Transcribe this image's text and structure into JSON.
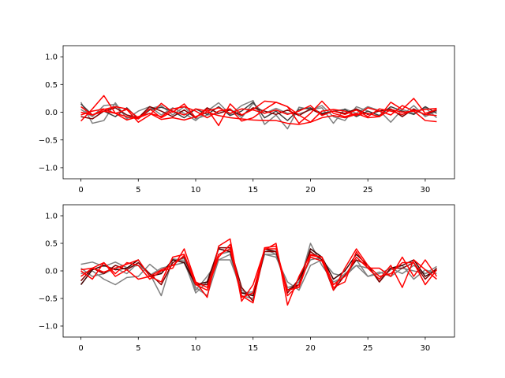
{
  "figure": {
    "background": "#ffffff"
  },
  "chart_data": [
    {
      "type": "line",
      "title": "",
      "xlabel": "",
      "ylabel": "",
      "xlim": [
        -1.55,
        32.55
      ],
      "ylim": [
        -1.2,
        1.2
      ],
      "xticks": [
        0,
        5,
        10,
        15,
        20,
        25,
        30
      ],
      "yticks": [
        -1.0,
        -0.5,
        0.0,
        0.5,
        1.0
      ],
      "xtick_labels": [
        "0",
        "5",
        "10",
        "15",
        "20",
        "25",
        "30"
      ],
      "ytick_labels": [
        "−1.0",
        "−0.5",
        "0.0",
        "0.5",
        "1.0"
      ],
      "grid": false,
      "legend": "none",
      "x": [
        0,
        1,
        2,
        3,
        4,
        5,
        6,
        7,
        8,
        9,
        10,
        11,
        12,
        13,
        14,
        15,
        16,
        17,
        18,
        19,
        20,
        21,
        22,
        23,
        24,
        25,
        26,
        27,
        28,
        29,
        30,
        31
      ],
      "series": [
        {
          "color": "#808080",
          "values": [
            0.18,
            -0.2,
            -0.15,
            0.17,
            -0.12,
            0.02,
            0.1,
            -0.05,
            0.08,
            -0.02,
            -0.15,
            0.02,
            0.17,
            -0.04,
            0.12,
            0.21,
            -0.22,
            -0.05,
            -0.3,
            0.09,
            0.05,
            0.08,
            -0.2,
            0.06,
            -0.02,
            0.1,
            0.03,
            -0.18,
            0.05,
            -0.02,
            0.08,
            -0.1
          ]
        },
        {
          "color": "#808080",
          "values": [
            0.05,
            -0.08,
            0.12,
            0.14,
            -0.1,
            -0.1,
            0.06,
            0.12,
            -0.05,
            0.1,
            -0.12,
            -0.05,
            -0.02,
            0.06,
            -0.1,
            0.16,
            -0.02,
            0.07,
            -0.02,
            -0.03,
            0.04,
            0.12,
            -0.08,
            -0.15,
            0.1,
            0.02,
            -0.06,
            0.04,
            -0.05,
            0.12,
            -0.08,
            0.02
          ]
        },
        {
          "color": "#404040",
          "values": [
            0.15,
            -0.05,
            0.02,
            -0.08,
            0.08,
            -0.12,
            0.04,
            0.09,
            0.02,
            -0.1,
            0.06,
            -0.04,
            0.1,
            -0.06,
            0.02,
            0.18,
            -0.1,
            0.02,
            -0.15,
            0.05,
            0.08,
            -0.02,
            0.02,
            0.05,
            -0.08,
            0.02,
            -0.06,
            0.1,
            0.02,
            -0.04,
            0.1,
            -0.02
          ]
        },
        {
          "color": "#800000",
          "values": [
            -0.08,
            -0.12,
            0.02,
            0.08,
            -0.05,
            -0.1,
            0.1,
            0.02,
            -0.08,
            0.04,
            -0.1,
            0.08,
            -0.02,
            0.04,
            -0.06,
            0.08,
            0.02,
            -0.04,
            0.04,
            -0.06,
            0.06,
            -0.04,
            0.02,
            -0.02,
            0.06,
            -0.04,
            0.02,
            0.06,
            -0.08,
            0.06,
            -0.05,
            0.04
          ]
        },
        {
          "color": "#ff0000",
          "values": [
            -0.16,
            0.06,
            0.3,
            -0.02,
            0.05,
            -0.18,
            -0.05,
            0.16,
            0.0,
            0.15,
            -0.1,
            0.06,
            -0.24,
            0.15,
            -0.05,
            0.05,
            0.2,
            0.18,
            0.1,
            -0.2,
            -0.02,
            0.2,
            -0.02,
            -0.08,
            -0.02,
            -0.1,
            -0.08,
            0.18,
            0.05,
            0.25,
            -0.02,
            0.05
          ]
        },
        {
          "color": "#ff0000",
          "values": [
            0.0,
            -0.05,
            0.05,
            0.1,
            0.06,
            -0.1,
            -0.02,
            -0.08,
            0.06,
            0.1,
            0.02,
            -0.1,
            0.02,
            0.06,
            -0.16,
            -0.1,
            0.05,
            0.18,
            0.1,
            -0.05,
            -0.18,
            0.02,
            0.05,
            0.02,
            -0.06,
            0.08,
            0.02,
            -0.05,
            0.12,
            0.02,
            0.05,
            0.07
          ]
        },
        {
          "color": "#ff0000",
          "values": [
            0.1,
            -0.05,
            0.02,
            -0.02,
            -0.14,
            -0.08,
            -0.02,
            -0.13,
            -0.1,
            -0.14,
            -0.08,
            0.0,
            -0.06,
            -0.1,
            -0.12,
            -0.14,
            -0.15,
            -0.15,
            -0.2,
            -0.22,
            -0.18,
            -0.1,
            -0.06,
            -0.1,
            -0.04,
            -0.02,
            -0.08,
            0.05,
            0.0,
            0.02,
            -0.15,
            -0.17
          ]
        },
        {
          "color": "#ff0000",
          "values": [
            -0.05,
            0.02,
            0.06,
            -0.02,
            -0.08,
            -0.12,
            0.06,
            -0.1,
            0.02,
            -0.05,
            0.06,
            0.02,
            0.08,
            -0.02,
            0.06,
            0.04,
            -0.02,
            0.04,
            -0.04,
            0.02,
            0.12,
            -0.06,
            0.02,
            -0.04,
            0.04,
            -0.08,
            0.06,
            0.02,
            -0.04,
            0.04,
            -0.04,
            -0.06
          ]
        }
      ]
    },
    {
      "type": "line",
      "title": "",
      "xlabel": "",
      "ylabel": "",
      "xlim": [
        -1.55,
        32.55
      ],
      "ylim": [
        -1.2,
        1.2
      ],
      "xticks": [
        0,
        5,
        10,
        15,
        20,
        25,
        30
      ],
      "yticks": [
        -1.0,
        -0.5,
        0.0,
        0.5,
        1.0
      ],
      "xtick_labels": [
        "0",
        "5",
        "10",
        "15",
        "20",
        "25",
        "30"
      ],
      "ytick_labels": [
        "−1.0",
        "−0.5",
        "0.0",
        "0.5",
        "1.0"
      ],
      "grid": false,
      "legend": "none",
      "x": [
        0,
        1,
        2,
        3,
        4,
        5,
        6,
        7,
        8,
        9,
        10,
        11,
        12,
        13,
        14,
        15,
        16,
        17,
        18,
        19,
        20,
        21,
        22,
        23,
        24,
        25,
        26,
        27,
        28,
        29,
        30,
        31
      ],
      "series": [
        {
          "color": "#808080",
          "values": [
            0.12,
            0.16,
            0.08,
            0.16,
            0.06,
            0.1,
            -0.05,
            -0.45,
            0.22,
            0.18,
            -0.4,
            -0.2,
            0.3,
            0.35,
            -0.4,
            -0.38,
            0.3,
            0.3,
            -0.3,
            -0.25,
            0.5,
            0.1,
            -0.2,
            -0.1,
            0.2,
            -0.1,
            -0.05,
            0.05,
            -0.05,
            0.1,
            -0.05,
            0.08
          ]
        },
        {
          "color": "#808080",
          "values": [
            -0.05,
            0.0,
            -0.15,
            -0.25,
            -0.12,
            -0.1,
            0.12,
            -0.05,
            0.2,
            0.22,
            -0.3,
            -0.45,
            0.2,
            0.3,
            -0.45,
            -0.5,
            0.4,
            0.3,
            -0.35,
            -0.2,
            0.2,
            0.25,
            -0.25,
            -0.05,
            0.1,
            0.05,
            -0.15,
            0.02,
            0.1,
            -0.15,
            0.02,
            -0.05
          ]
        },
        {
          "color": "#808080",
          "values": [
            0.05,
            -0.1,
            -0.05,
            0.05,
            -0.05,
            0.15,
            -0.08,
            0.05,
            0.1,
            0.15,
            -0.35,
            -0.1,
            0.2,
            0.2,
            -0.35,
            -0.45,
            0.3,
            0.25,
            -0.2,
            -0.35,
            0.1,
            0.2,
            -0.05,
            -0.1,
            0.1,
            -0.1,
            -0.02,
            -0.1,
            0.05,
            0.0,
            -0.05,
            0.02
          ]
        },
        {
          "color": "#400000",
          "values": [
            -0.25,
            0.02,
            0.1,
            0.02,
            0.05,
            0.2,
            -0.1,
            -0.05,
            0.2,
            0.15,
            -0.25,
            -0.2,
            0.4,
            0.35,
            -0.4,
            -0.45,
            0.4,
            0.35,
            -0.35,
            -0.25,
            0.4,
            0.25,
            -0.15,
            0.0,
            0.3,
            0.1,
            -0.2,
            0.05,
            0.1,
            0.2,
            -0.1,
            0.02
          ]
        },
        {
          "color": "#800000",
          "values": [
            -0.18,
            0.05,
            -0.05,
            0.1,
            0.02,
            0.15,
            -0.05,
            -0.25,
            0.15,
            0.25,
            -0.25,
            -0.25,
            0.42,
            0.42,
            -0.3,
            -0.55,
            0.35,
            0.35,
            -0.4,
            -0.15,
            0.35,
            0.2,
            -0.35,
            -0.08,
            0.2,
            0.1,
            -0.2,
            0.05,
            0.05,
            0.15,
            -0.15,
            0.05
          ]
        },
        {
          "color": "#ff0000",
          "values": [
            0.0,
            -0.15,
            0.15,
            -0.05,
            0.15,
            0.1,
            -0.15,
            0.0,
            0.05,
            0.4,
            -0.2,
            -0.48,
            0.45,
            0.58,
            -0.55,
            -0.25,
            0.38,
            0.5,
            -0.62,
            -0.1,
            0.3,
            0.25,
            -0.35,
            0.05,
            0.4,
            0.1,
            -0.1,
            -0.05,
            0.15,
            0.15,
            -0.25,
            0.02
          ]
        },
        {
          "color": "#ff0000",
          "values": [
            -0.1,
            0.05,
            0.15,
            -0.1,
            0.02,
            -0.15,
            -0.1,
            -0.2,
            0.25,
            0.3,
            -0.25,
            -0.35,
            0.25,
            0.48,
            -0.45,
            -0.58,
            0.42,
            0.45,
            -0.45,
            -0.25,
            0.25,
            0.18,
            -0.3,
            -0.2,
            0.35,
            0.05,
            -0.15,
            0.1,
            -0.3,
            0.2,
            0.02,
            -0.15
          ]
        },
        {
          "color": "#ff0000",
          "values": [
            0.02,
            0.05,
            -0.02,
            0.05,
            0.12,
            0.2,
            -0.1,
            0.02,
            0.1,
            0.28,
            -0.2,
            -0.3,
            0.3,
            0.4,
            -0.48,
            -0.4,
            0.4,
            0.4,
            -0.35,
            -0.3,
            0.28,
            0.25,
            -0.25,
            -0.1,
            0.25,
            0.05,
            0.05,
            -0.1,
            0.25,
            -0.1,
            0.2,
            -0.1
          ]
        }
      ]
    }
  ]
}
